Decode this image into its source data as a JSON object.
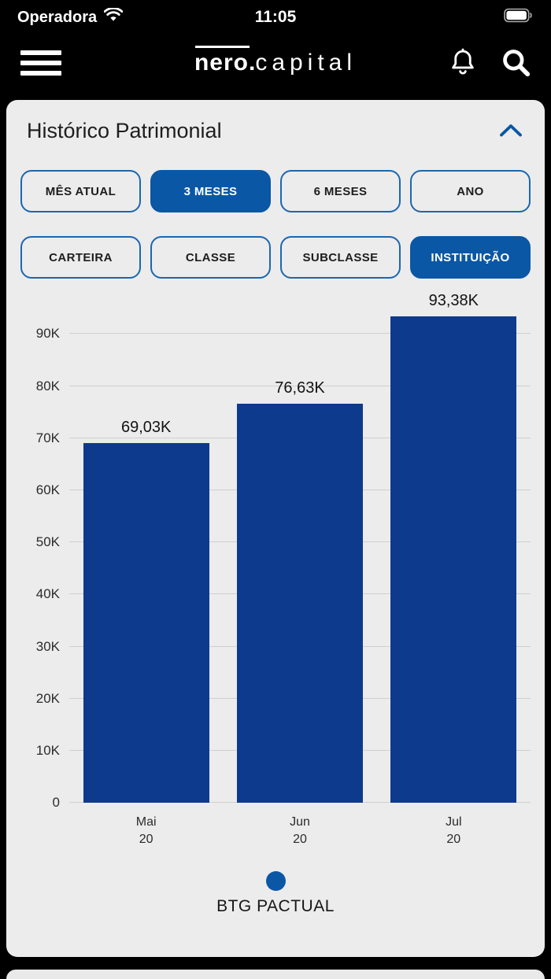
{
  "status_bar": {
    "carrier": "Operadora",
    "time": "11:05"
  },
  "header": {
    "logo_primary": "nero",
    "logo_separator": ".",
    "logo_secondary": "capital"
  },
  "card": {
    "title": "Histórico Patrimonial",
    "period_filters": [
      {
        "label": "MÊS ATUAL",
        "selected": false
      },
      {
        "label": "3 MESES",
        "selected": true
      },
      {
        "label": "6 MESES",
        "selected": false
      },
      {
        "label": "ANO",
        "selected": false
      }
    ],
    "group_filters": [
      {
        "label": "CARTEIRA",
        "selected": false
      },
      {
        "label": "CLASSE",
        "selected": false
      },
      {
        "label": "SUBCLASSE",
        "selected": false
      },
      {
        "label": "INSTITUIÇÃO",
        "selected": true
      }
    ],
    "legend": {
      "label": "BTG PACTUAL"
    }
  },
  "chart_data": {
    "type": "bar",
    "title": "Histórico Patrimonial",
    "categories": [
      {
        "month": "Mai",
        "year": "20"
      },
      {
        "month": "Jun",
        "year": "20"
      },
      {
        "month": "Jul",
        "year": "20"
      }
    ],
    "values_thousands": [
      69.03,
      76.63,
      93.38
    ],
    "value_labels": [
      "69,03K",
      "76,63K",
      "93,38K"
    ],
    "series": [
      {
        "name": "BTG PACTUAL",
        "values_thousands": [
          69.03,
          76.63,
          93.38
        ]
      }
    ],
    "ytick_values": [
      0,
      10,
      20,
      30,
      40,
      50,
      60,
      70,
      80,
      90
    ],
    "ytick_labels": [
      "0",
      "10K",
      "20K",
      "30K",
      "40K",
      "50K",
      "60K",
      "70K",
      "80K",
      "90K"
    ],
    "ylim": [
      0,
      94
    ],
    "grid": true,
    "legend_position": "bottom",
    "bar_color": "#0d3a8d"
  },
  "colors": {
    "accent_blue": "#0a57a5",
    "bar_blue": "#0d3a8d",
    "card_bg": "#ececec",
    "header_bg": "#000000"
  }
}
